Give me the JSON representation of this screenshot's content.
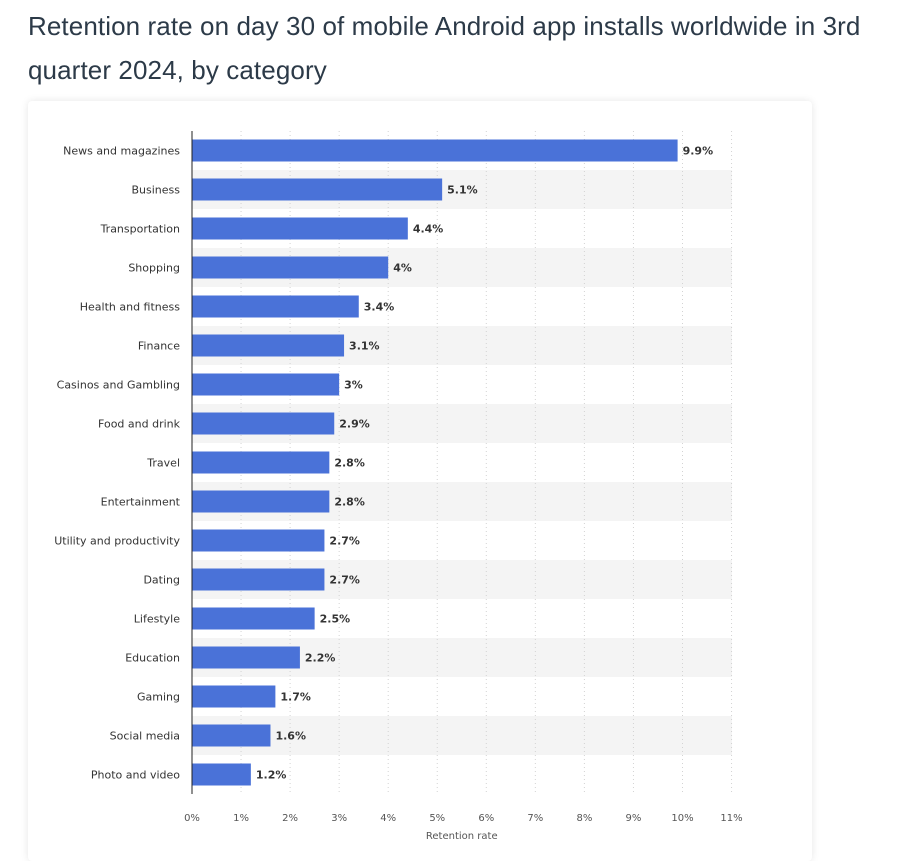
{
  "title": "Retention rate on day 30 of mobile Android app installs worldwide in 3rd quarter 2024, by category",
  "colors": {
    "bar": "#4a72d8",
    "band": "#f4f4f4",
    "grid": "#d3d3d3",
    "axis": "#222222"
  },
  "chart_data": {
    "type": "bar",
    "orientation": "horizontal",
    "categories": [
      "News and magazines",
      "Business",
      "Transportation",
      "Shopping",
      "Health and fitness",
      "Finance",
      "Casinos and Gambling",
      "Food and drink",
      "Travel",
      "Entertainment",
      "Utility and productivity",
      "Dating",
      "Lifestyle",
      "Education",
      "Gaming",
      "Social media",
      "Photo and video"
    ],
    "values": [
      9.9,
      5.1,
      4.4,
      4,
      3.4,
      3.1,
      3,
      2.9,
      2.8,
      2.8,
      2.7,
      2.7,
      2.5,
      2.2,
      1.7,
      1.6,
      1.2
    ],
    "value_labels": [
      "9.9%",
      "5.1%",
      "4.4%",
      "4%",
      "3.4%",
      "3.1%",
      "3%",
      "2.9%",
      "2.8%",
      "2.8%",
      "2.7%",
      "2.7%",
      "2.5%",
      "2.2%",
      "1.7%",
      "1.6%",
      "1.2%"
    ],
    "xlim": [
      0,
      11
    ],
    "xticks": [
      0,
      1,
      2,
      3,
      4,
      5,
      6,
      7,
      8,
      9,
      10,
      11
    ],
    "xtick_labels": [
      "0%",
      "1%",
      "2%",
      "3%",
      "4%",
      "5%",
      "6%",
      "7%",
      "8%",
      "9%",
      "10%",
      "11%"
    ],
    "xlabel": "Retention rate",
    "ylabel": "",
    "grid": true,
    "legend": false
  }
}
